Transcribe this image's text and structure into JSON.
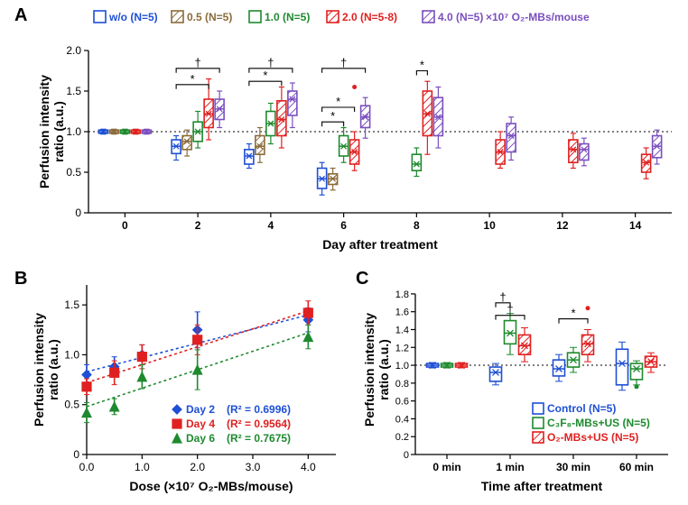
{
  "label_A": "A",
  "label_B": "B",
  "label_C": "C",
  "A": {
    "type": "grouped-boxplot",
    "ylabel_line1": "Perfusion intensity",
    "ylabel_line2": "ratio (a.u.)",
    "xlabel": "Day after treatment",
    "ylim": [
      0,
      2.0
    ],
    "yticks": [
      0,
      0.5,
      1.0,
      1.5,
      2.0
    ],
    "ytick_labels": [
      "0",
      "0.5",
      "1.0",
      "1.5",
      "2.0"
    ],
    "xtick_labels": [
      "0",
      "2",
      "4",
      "6",
      "8",
      "10",
      "12",
      "14"
    ],
    "legend_suffix": "×10⁷ O₂-MBs/mouse",
    "label_fontsize": 14,
    "tick_fontsize": 12,
    "legend_fontsize": 12,
    "background": "#ffffff",
    "ref_line": 1.0,
    "groups": [
      {
        "name": "w/o (N=5)",
        "color": "#1e4fd6",
        "fill": "#ffffff"
      },
      {
        "name": "0.5 (N=5)",
        "color": "#8a6b3a",
        "fill": "#c9ad7d"
      },
      {
        "name": "1.0 (N=5)",
        "color": "#1e8a2e",
        "fill": "#ffffff"
      },
      {
        "name": "2.0 (N=5-8)",
        "color": "#e02020",
        "fill": "#f5b3b3"
      },
      {
        "name": "4.0 (N=5)",
        "color": "#7a4fbf",
        "fill": "#c9b3e6"
      }
    ],
    "days": [
      {
        "x": "0",
        "boxes": [
          {
            "q1": 0.98,
            "med": 1.0,
            "q3": 1.02,
            "lo": 0.97,
            "hi": 1.03
          },
          {
            "q1": 0.98,
            "med": 1.0,
            "q3": 1.02,
            "lo": 0.97,
            "hi": 1.03
          },
          {
            "q1": 0.98,
            "med": 1.0,
            "q3": 1.02,
            "lo": 0.97,
            "hi": 1.03
          },
          {
            "q1": 0.98,
            "med": 1.0,
            "q3": 1.02,
            "lo": 0.97,
            "hi": 1.03
          },
          {
            "q1": 0.98,
            "med": 1.0,
            "q3": 1.02,
            "lo": 0.97,
            "hi": 1.03
          }
        ]
      },
      {
        "x": "2",
        "boxes": [
          {
            "q1": 0.73,
            "med": 0.82,
            "q3": 0.9,
            "lo": 0.65,
            "hi": 0.95
          },
          {
            "q1": 0.78,
            "med": 0.88,
            "q3": 0.95,
            "lo": 0.7,
            "hi": 1.02
          },
          {
            "q1": 0.88,
            "med": 1.0,
            "q3": 1.12,
            "lo": 0.8,
            "hi": 1.25
          },
          {
            "q1": 1.05,
            "med": 1.22,
            "q3": 1.4,
            "lo": 0.9,
            "hi": 1.65
          },
          {
            "q1": 1.15,
            "med": 1.28,
            "q3": 1.4,
            "lo": 1.05,
            "hi": 1.5
          }
        ],
        "sig": [
          {
            "from": 0,
            "to": 4,
            "y": 1.78,
            "label": "†"
          },
          {
            "from": 0,
            "to": 3,
            "y": 1.58,
            "label": "*"
          }
        ]
      },
      {
        "x": "4",
        "boxes": [
          {
            "q1": 0.6,
            "med": 0.7,
            "q3": 0.78,
            "lo": 0.55,
            "hi": 0.85
          },
          {
            "q1": 0.72,
            "med": 0.82,
            "q3": 0.95,
            "lo": 0.62,
            "hi": 1.05
          },
          {
            "q1": 0.95,
            "med": 1.1,
            "q3": 1.25,
            "lo": 0.85,
            "hi": 1.35
          },
          {
            "q1": 0.95,
            "med": 1.15,
            "q3": 1.38,
            "lo": 0.8,
            "hi": 1.55
          },
          {
            "q1": 1.2,
            "med": 1.4,
            "q3": 1.5,
            "lo": 1.05,
            "hi": 1.6
          }
        ],
        "sig": [
          {
            "from": 0,
            "to": 4,
            "y": 1.78,
            "label": "†"
          },
          {
            "from": 0,
            "to": 3,
            "y": 1.62,
            "label": "*"
          }
        ]
      },
      {
        "x": "6",
        "boxes": [
          {
            "q1": 0.3,
            "med": 0.42,
            "q3": 0.55,
            "lo": 0.22,
            "hi": 0.62
          },
          {
            "q1": 0.35,
            "med": 0.42,
            "q3": 0.48,
            "lo": 0.28,
            "hi": 0.55
          },
          {
            "q1": 0.7,
            "med": 0.82,
            "q3": 0.95,
            "lo": 0.62,
            "hi": 1.05
          },
          {
            "q1": 0.6,
            "med": 0.75,
            "q3": 0.9,
            "lo": 0.52,
            "hi": 1.0,
            "outlier": 1.55
          },
          {
            "q1": 1.05,
            "med": 1.18,
            "q3": 1.32,
            "lo": 0.92,
            "hi": 1.42
          }
        ],
        "sig": [
          {
            "from": 0,
            "to": 4,
            "y": 1.78,
            "label": "†"
          },
          {
            "from": 0,
            "to": 3,
            "y": 1.3,
            "label": "*"
          },
          {
            "from": 0,
            "to": 2,
            "y": 1.12,
            "label": "*"
          }
        ]
      },
      {
        "x": "8",
        "boxes": [
          null,
          null,
          {
            "q1": 0.52,
            "med": 0.6,
            "q3": 0.72,
            "lo": 0.45,
            "hi": 0.8
          },
          {
            "q1": 0.95,
            "med": 1.22,
            "q3": 1.5,
            "lo": 0.72,
            "hi": 1.62
          },
          {
            "q1": 0.95,
            "med": 1.18,
            "q3": 1.42,
            "lo": 0.8,
            "hi": 1.55
          }
        ],
        "sig": [
          {
            "from": 2,
            "to": 3,
            "y": 1.75,
            "label": "*"
          }
        ]
      },
      {
        "x": "10",
        "boxes": [
          null,
          null,
          null,
          {
            "q1": 0.6,
            "med": 0.75,
            "q3": 0.9,
            "lo": 0.55,
            "hi": 1.0
          },
          {
            "q1": 0.75,
            "med": 0.95,
            "q3": 1.1,
            "lo": 0.65,
            "hi": 1.18
          }
        ]
      },
      {
        "x": "12",
        "boxes": [
          null,
          null,
          null,
          {
            "q1": 0.62,
            "med": 0.78,
            "q3": 0.9,
            "lo": 0.55,
            "hi": 0.98
          },
          {
            "q1": 0.65,
            "med": 0.78,
            "q3": 0.85,
            "lo": 0.58,
            "hi": 0.92
          }
        ]
      },
      {
        "x": "14",
        "boxes": [
          null,
          null,
          null,
          {
            "q1": 0.5,
            "med": 0.62,
            "q3": 0.72,
            "lo": 0.42,
            "hi": 0.8
          },
          {
            "q1": 0.68,
            "med": 0.82,
            "q3": 0.95,
            "lo": 0.6,
            "hi": 1.02
          }
        ]
      }
    ]
  },
  "B": {
    "type": "scatter-regression",
    "ylabel_line1": "Perfusion intensity",
    "ylabel_line2": "ratio (a.u.)",
    "xlabel": "Dose (×10⁷ O₂-MBs/mouse)",
    "xlim": [
      0,
      4.5
    ],
    "ylim": [
      0,
      1.7
    ],
    "xticks": [
      0,
      1,
      2,
      3,
      4
    ],
    "xtick_labels": [
      "0.0",
      "1.0",
      "2.0",
      "3.0",
      "4.0"
    ],
    "yticks": [
      0,
      0.5,
      1.0,
      1.5
    ],
    "ytick_labels": [
      "0",
      "0.5",
      "1.0",
      "1.5"
    ],
    "label_fontsize": 14,
    "tick_fontsize": 12,
    "legend_fontsize": 12,
    "series": [
      {
        "name": "Day 2",
        "r2": "(R² = 0.6996)",
        "color": "#1e4fd6",
        "marker": "diamond",
        "pts": [
          {
            "x": 0,
            "y": 0.8,
            "e": 0.1
          },
          {
            "x": 0.5,
            "y": 0.88,
            "e": 0.1
          },
          {
            "x": 1.0,
            "y": 1.0,
            "e": 0.1
          },
          {
            "x": 2.0,
            "y": 1.25,
            "e": 0.18
          },
          {
            "x": 4.0,
            "y": 1.35,
            "e": 0.12
          }
        ],
        "reg": [
          [
            0,
            0.83
          ],
          [
            4,
            1.4
          ]
        ]
      },
      {
        "name": "Day 4",
        "r2": "(R² = 0.9564)",
        "color": "#e02020",
        "marker": "square",
        "pts": [
          {
            "x": 0,
            "y": 0.68,
            "e": 0.08
          },
          {
            "x": 0.5,
            "y": 0.82,
            "e": 0.12
          },
          {
            "x": 1.0,
            "y": 0.98,
            "e": 0.12
          },
          {
            "x": 2.0,
            "y": 1.15,
            "e": 0.15
          },
          {
            "x": 4.0,
            "y": 1.42,
            "e": 0.12
          }
        ],
        "reg": [
          [
            0,
            0.72
          ],
          [
            4,
            1.44
          ]
        ]
      },
      {
        "name": "Day 6",
        "r2": "(R² = 0.7675)",
        "color": "#1e8a2e",
        "marker": "triangle",
        "pts": [
          {
            "x": 0,
            "y": 0.42,
            "e": 0.1
          },
          {
            "x": 0.5,
            "y": 0.48,
            "e": 0.08
          },
          {
            "x": 1.0,
            "y": 0.78,
            "e": 0.12
          },
          {
            "x": 2.0,
            "y": 0.85,
            "e": 0.2
          },
          {
            "x": 4.0,
            "y": 1.18,
            "e": 0.12
          }
        ],
        "reg": [
          [
            0,
            0.48
          ],
          [
            4,
            1.22
          ]
        ]
      }
    ]
  },
  "C": {
    "type": "grouped-boxplot",
    "ylabel_line1": "Perfusion intensity",
    "ylabel_line2": "ratio (a.u.)",
    "xlabel": "Time after treatment",
    "ylim": [
      0,
      2.0
    ],
    "yticks": [
      0,
      0.2,
      0.4,
      0.6,
      0.8,
      1.0,
      1.2,
      1.4,
      1.6,
      1.8
    ],
    "ytick_labels": [
      "0",
      "0.2",
      "0.4",
      "0.6",
      "0.8",
      "1.0",
      "1.2",
      "1.4",
      "1.6",
      "1.8"
    ],
    "xtick_labels": [
      "0 min",
      "1 min",
      "30 min",
      "60 min"
    ],
    "label_fontsize": 14,
    "tick_fontsize": 12,
    "legend_fontsize": 12,
    "ref_line": 1.0,
    "groups": [
      {
        "name": "Control (N=5)",
        "color": "#1e4fd6",
        "fill": "#ffffff",
        "sub": ""
      },
      {
        "name": "C₃F₈-MBs+US (N=5)",
        "color": "#1e8a2e",
        "fill": "#ffffff",
        "sub": ""
      },
      {
        "name": "O₂-MBs+US (N=5)",
        "color": "#e02020",
        "fill": "#f5b3b3",
        "sub": ""
      }
    ],
    "times": [
      {
        "x": "0 min",
        "boxes": [
          {
            "q1": 0.98,
            "med": 1.0,
            "q3": 1.02,
            "lo": 0.97,
            "hi": 1.03
          },
          {
            "q1": 0.98,
            "med": 1.0,
            "q3": 1.02,
            "lo": 0.97,
            "hi": 1.03
          },
          {
            "q1": 0.98,
            "med": 1.0,
            "q3": 1.02,
            "lo": 0.97,
            "hi": 1.03
          }
        ]
      },
      {
        "x": "1 min",
        "boxes": [
          {
            "q1": 0.82,
            "med": 0.92,
            "q3": 0.98,
            "lo": 0.78,
            "hi": 1.02
          },
          {
            "q1": 1.24,
            "med": 1.36,
            "q3": 1.5,
            "lo": 1.12,
            "hi": 1.58
          },
          {
            "q1": 1.12,
            "med": 1.22,
            "q3": 1.34,
            "lo": 1.04,
            "hi": 1.42
          }
        ],
        "sig": [
          {
            "from": 0,
            "to": 1,
            "y": 1.7,
            "label": "†"
          },
          {
            "from": 0,
            "to": 2,
            "y": 1.56,
            "label": "†"
          }
        ]
      },
      {
        "x": "30 min",
        "boxes": [
          {
            "q1": 0.88,
            "med": 0.96,
            "q3": 1.06,
            "lo": 0.82,
            "hi": 1.12
          },
          {
            "q1": 0.98,
            "med": 1.06,
            "q3": 1.14,
            "lo": 0.92,
            "hi": 1.2
          },
          {
            "q1": 1.12,
            "med": 1.24,
            "q3": 1.34,
            "lo": 1.04,
            "hi": 1.4,
            "outlier": 1.64
          }
        ],
        "sig": [
          {
            "from": 0,
            "to": 2,
            "y": 1.52,
            "label": "*"
          }
        ]
      },
      {
        "x": "60 min",
        "boxes": [
          {
            "q1": 0.78,
            "med": 1.02,
            "q3": 1.18,
            "lo": 0.72,
            "hi": 1.26
          },
          {
            "q1": 0.84,
            "med": 0.96,
            "q3": 1.02,
            "lo": 0.78,
            "hi": 1.05,
            "outlier": 0.76
          },
          {
            "q1": 0.98,
            "med": 1.04,
            "q3": 1.1,
            "lo": 0.92,
            "hi": 1.14
          }
        ]
      }
    ]
  }
}
